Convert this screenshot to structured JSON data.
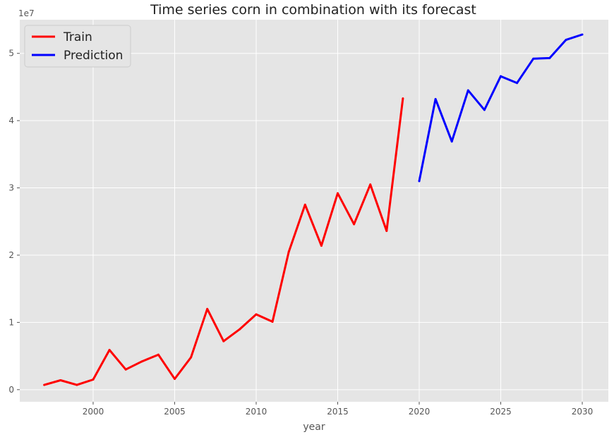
{
  "chart_data": {
    "type": "line",
    "title": "Time series corn in combination with its forecast",
    "xlabel": "year",
    "ylabel": "",
    "y_scale_label": "1e7",
    "xlim": [
      1995.5,
      2031.6
    ],
    "ylim": [
      -0.18,
      5.5
    ],
    "xticks": [
      2000,
      2005,
      2010,
      2015,
      2020,
      2025,
      2030
    ],
    "yticks": [
      0,
      1,
      2,
      3,
      4,
      5
    ],
    "grid": true,
    "legend_position": "top-left",
    "series": [
      {
        "name": "Train",
        "color": "#ff0000",
        "x": [
          1997,
          1998,
          1999,
          2000,
          2001,
          2002,
          2003,
          2004,
          2005,
          2006,
          2007,
          2008,
          2009,
          2010,
          2011,
          2012,
          2013,
          2014,
          2015,
          2016,
          2017,
          2018,
          2019
        ],
        "y": [
          0.07,
          0.14,
          0.07,
          0.15,
          0.59,
          0.3,
          0.42,
          0.52,
          0.16,
          0.48,
          1.2,
          0.72,
          0.9,
          1.12,
          1.01,
          2.05,
          2.75,
          2.14,
          2.92,
          2.46,
          3.05,
          2.36,
          4.33
        ]
      },
      {
        "name": "Prediction",
        "color": "#0000ff",
        "x": [
          2020,
          2021,
          2022,
          2023,
          2024,
          2025,
          2026,
          2027,
          2028,
          2029,
          2030
        ],
        "y": [
          3.1,
          4.32,
          3.69,
          4.45,
          4.16,
          4.66,
          4.56,
          4.92,
          4.93,
          5.2,
          5.28
        ]
      }
    ]
  }
}
